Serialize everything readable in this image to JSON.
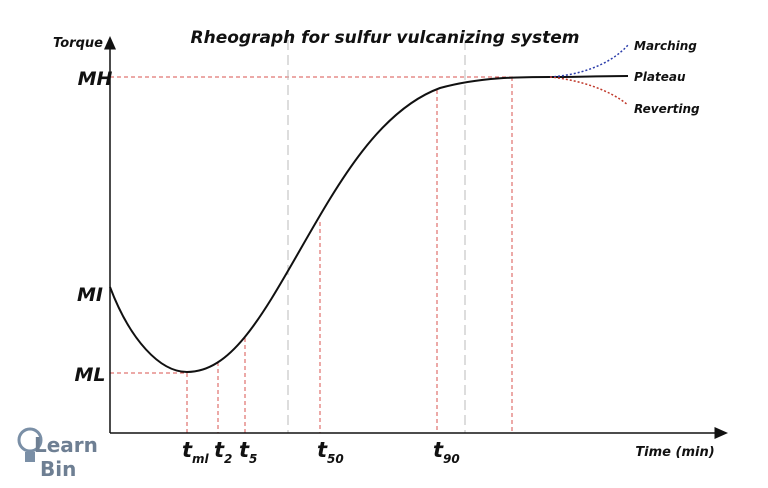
{
  "title": "Rheograph for sulfur vulcanizing system",
  "y_axis_label": "Torque",
  "x_axis_label": "Time (min)",
  "levels": [
    "MH",
    "MI",
    "ML"
  ],
  "curves": [
    "Marching",
    "Plateau",
    "Reverting"
  ],
  "time_markers": [
    {
      "main": "t",
      "sub": "ml"
    },
    {
      "main": "t",
      "sub": "2"
    },
    {
      "main": "t",
      "sub": "5"
    },
    {
      "main": "t",
      "sub": "50"
    },
    {
      "main": "t",
      "sub": "90"
    }
  ],
  "logo": {
    "line1": "Learn",
    "line2": "Bin"
  }
}
